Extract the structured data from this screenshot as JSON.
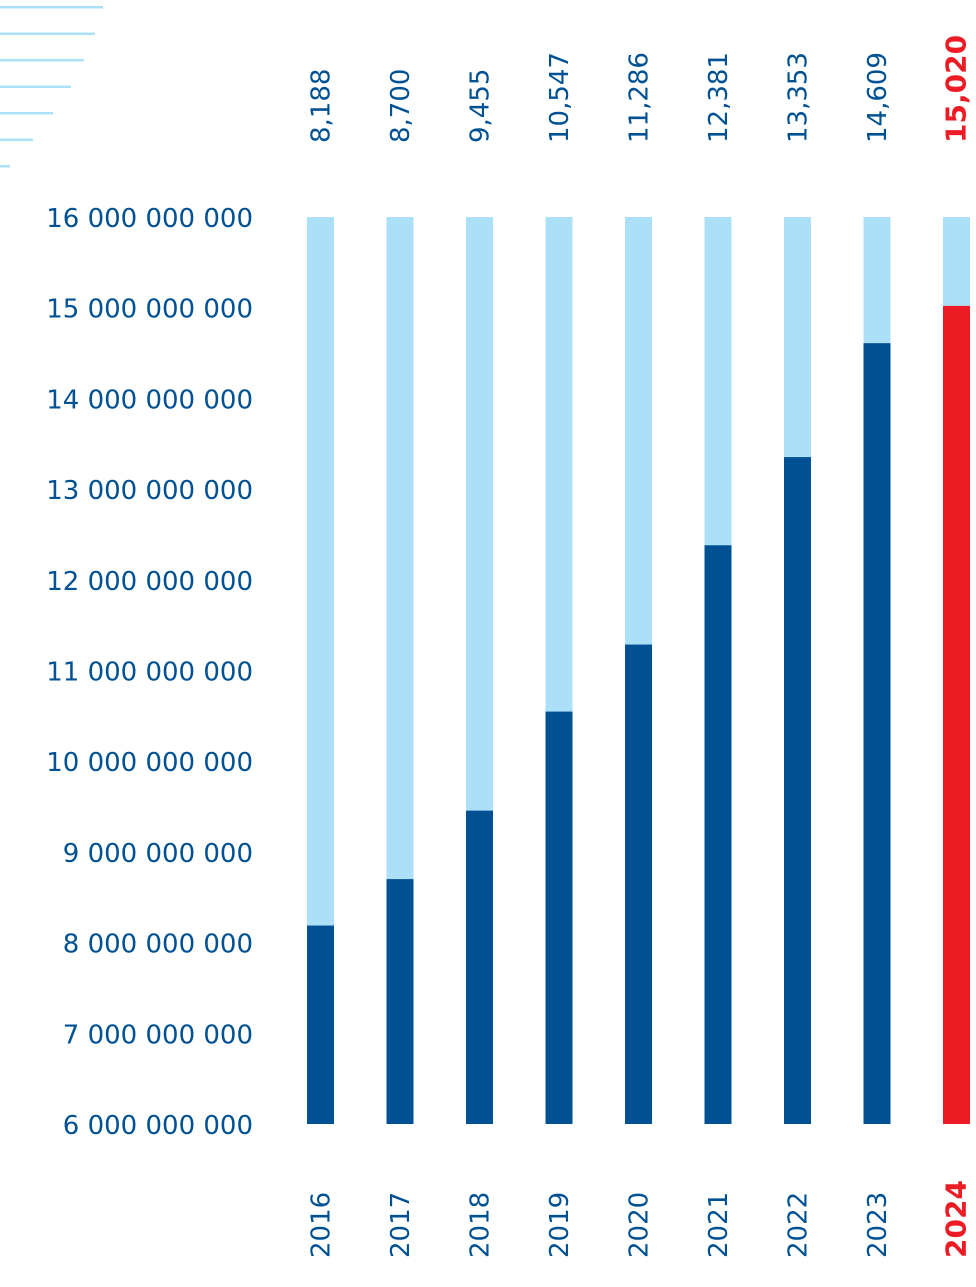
{
  "chart_data": {
    "type": "bar",
    "title": "",
    "xlabel": "",
    "ylabel": "",
    "ylim": [
      6000000000,
      16000000000
    ],
    "yticks": [
      {
        "value": 16000000000,
        "label": "16 000 000 000"
      },
      {
        "value": 15000000000,
        "label": "15 000 000 000"
      },
      {
        "value": 14000000000,
        "label": "14 000 000 000"
      },
      {
        "value": 13000000000,
        "label": "13 000 000 000"
      },
      {
        "value": 12000000000,
        "label": "12 000 000 000"
      },
      {
        "value": 11000000000,
        "label": "11 000 000 000"
      },
      {
        "value": 10000000000,
        "label": "10 000 000 000"
      },
      {
        "value": 9000000000,
        "label": "9 000 000 000"
      },
      {
        "value": 8000000000,
        "label": "8 000 000 000"
      },
      {
        "value": 7000000000,
        "label": "7 000 000 000"
      },
      {
        "value": 6000000000,
        "label": "6 000 000 000"
      }
    ],
    "categories": [
      "2016",
      "2017",
      "2018",
      "2019",
      "2020",
      "2021",
      "2022",
      "2023",
      "2024"
    ],
    "values": [
      8188000000,
      8700000000,
      9455000000,
      10547000000,
      11286000000,
      12381000000,
      13353000000,
      14609000000,
      15020000000
    ],
    "value_labels": [
      "8,188",
      "8,700",
      "9,455",
      "10,547",
      "11,286",
      "12,381",
      "13,353",
      "14,609",
      "15,020"
    ],
    "highlight_index": 8,
    "grid": false,
    "colors": {
      "bar": "#005193",
      "bar_background": "#ace0f8",
      "highlight": "#ed1c24",
      "tick_text": "#005193",
      "decoration": "#ace0f8"
    }
  }
}
